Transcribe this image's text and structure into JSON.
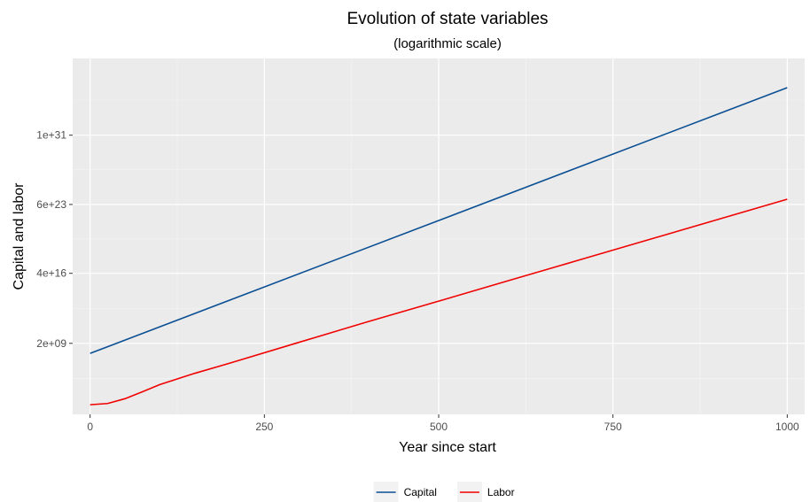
{
  "chart_data": {
    "type": "line",
    "title": "Evolution of state variables",
    "subtitle": "(logarithmic scale)",
    "xlabel": "Year since start",
    "ylabel": "Capital and labor",
    "x_ticks": [
      0,
      250,
      500,
      750,
      1000
    ],
    "xlim": [
      -25,
      1025
    ],
    "y_scale": "log",
    "y_ticks": [
      {
        "value": 2000000000.0,
        "label": "2e+09"
      },
      {
        "value": 4e+16,
        "label": "4e+16"
      },
      {
        "value": 6e+23,
        "label": "6e+23"
      },
      {
        "value": 1e+31,
        "label": "1e+31"
      }
    ],
    "ylim_log10": [
      1.9,
      39.0
    ],
    "grid": true,
    "legend_position": "bottom",
    "series": [
      {
        "name": "Capital",
        "color": "#0b4f94",
        "x": [
          0,
          1000
        ],
        "y": [
          180000000.0,
          9e+35
        ]
      },
      {
        "name": "Labor",
        "color": "#f10000",
        "x": [
          0,
          25,
          50,
          75,
          100,
          150,
          200,
          300,
          400,
          500,
          600,
          700,
          800,
          900,
          1000
        ],
        "y": [
          800.0,
          1070.0,
          3400.0,
          18000.0,
          100000.0,
          1500000.0,
          17000000.0,
          2600000000.0,
          390000000000.0,
          50000000000000.0,
          6800000000000000.0,
          9e+17,
          1.2e+20,
          1.6e+22,
          2.1e+24
        ]
      }
    ]
  }
}
